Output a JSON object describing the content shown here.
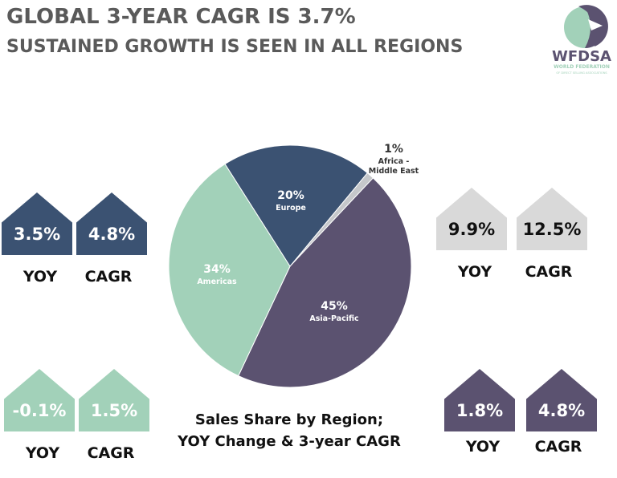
{
  "header": {
    "title": "GLOBAL 3-YEAR CAGR IS 3.7%",
    "subtitle": "SUSTAINED GROWTH IS SEEN IN ALL REGIONS"
  },
  "logo": {
    "name": "WFDSA",
    "line1": "WORLD FEDERATION",
    "line2": "OF DIRECT SELLING ASSOCIATIONS"
  },
  "chart_data": {
    "type": "pie",
    "caption": [
      "Sales Share by Region;",
      "YOY Change & 3-year CAGR"
    ],
    "slices": [
      {
        "label": "Africa - Middle East",
        "label_lines": [
          "Africa -",
          "Middle East"
        ],
        "value": 1,
        "display": "1%",
        "color": "#c5c7ca"
      },
      {
        "label": "Asia-Pacific",
        "label_lines": [
          "Asia-Pacific"
        ],
        "value": 45,
        "display": "45%",
        "color": "#5b5270"
      },
      {
        "label": "Americas",
        "label_lines": [
          "Americas"
        ],
        "value": 34,
        "display": "34%",
        "color": "#a2d1b9"
      },
      {
        "label": "Europe",
        "label_lines": [
          "Europe"
        ],
        "value": 20,
        "display": "20%",
        "color": "#3b5272"
      }
    ]
  },
  "regions": [
    {
      "region": "Europe",
      "yoy": "3.5%",
      "cagr": "4.8%",
      "color": "#3b5272",
      "text_color": "#ffffff"
    },
    {
      "region": "Africa - Middle East",
      "yoy": "9.9%",
      "cagr": "12.5%",
      "color": "#d9d9d9",
      "text_color": "#111111"
    },
    {
      "region": "Americas",
      "yoy": "-0.1%",
      "cagr": "1.5%",
      "color": "#a2d1b9",
      "text_color": "#ffffff"
    },
    {
      "region": "Asia-Pacific",
      "yoy": "1.8%",
      "cagr": "4.8%",
      "color": "#5b5270",
      "text_color": "#ffffff"
    }
  ],
  "labels": {
    "yoy": "YOY",
    "cagr": "CAGR"
  }
}
